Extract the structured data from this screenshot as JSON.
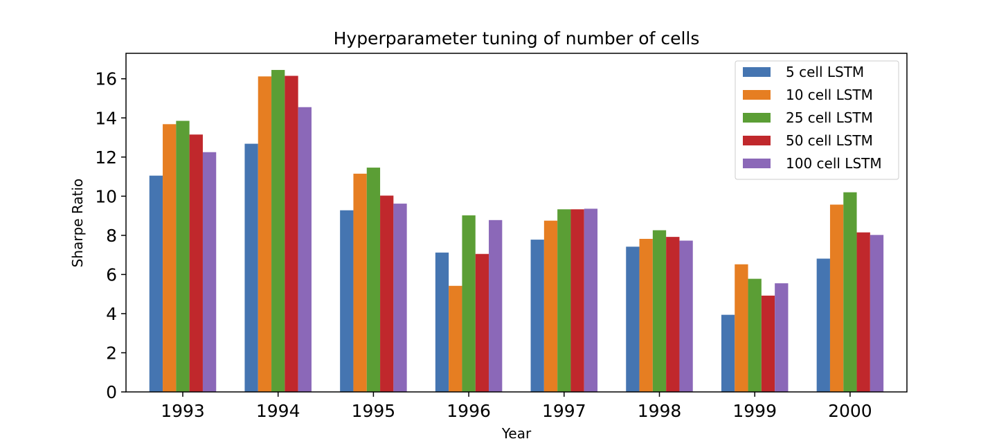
{
  "chart_data": {
    "type": "bar",
    "title": "Hyperparameter tuning of number of cells",
    "xlabel": "Year",
    "ylabel": "Sharpe Ratio",
    "ylim": [
      0,
      17.3
    ],
    "yticks": [
      0,
      2,
      4,
      6,
      8,
      10,
      12,
      14,
      16
    ],
    "grid": false,
    "legend_position": "top-right",
    "categories": [
      "1993",
      "1994",
      "1995",
      "1996",
      "1997",
      "1998",
      "1999",
      "2000"
    ],
    "series": [
      {
        "name": "5 cell LSTM",
        "color": "#4575b1",
        "values": [
          11.05,
          12.68,
          9.28,
          7.12,
          7.78,
          7.42,
          3.94,
          6.81
        ]
      },
      {
        "name": "10 cell LSTM",
        "color": "#e67e22",
        "values": [
          13.68,
          16.12,
          11.15,
          5.42,
          8.75,
          7.82,
          6.52,
          9.57
        ]
      },
      {
        "name": "25 cell LSTM",
        "color": "#5b9e35",
        "values": [
          13.85,
          16.45,
          11.46,
          9.02,
          9.33,
          8.26,
          5.78,
          10.2
        ]
      },
      {
        "name": "50 cell LSTM",
        "color": "#c0282c",
        "values": [
          13.15,
          16.15,
          10.03,
          7.05,
          9.33,
          7.92,
          4.92,
          8.15
        ]
      },
      {
        "name": "100 cell LSTM",
        "color": "#8b68b8",
        "values": [
          12.25,
          14.55,
          9.62,
          8.78,
          9.36,
          7.73,
          5.55,
          8.02
        ]
      }
    ]
  }
}
